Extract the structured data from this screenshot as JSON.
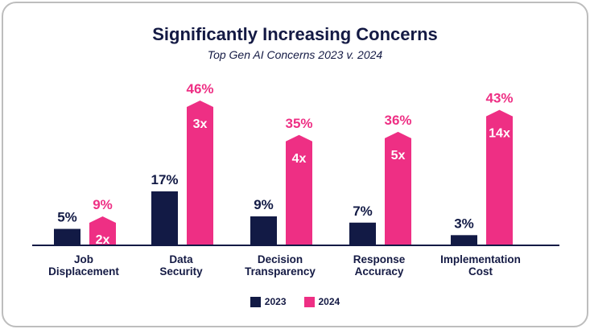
{
  "colors": {
    "y2023": "#121a45",
    "y2024": "#ee2f84",
    "axis": "#121a45",
    "text": "#141a44"
  },
  "chart_data": {
    "type": "bar",
    "title": "Significantly Increasing Concerns",
    "subtitle": "Top Gen AI Concerns 2023 v. 2024",
    "categories": [
      [
        "Job",
        "Displacement"
      ],
      [
        "Data",
        "Security"
      ],
      [
        "Decision",
        "Transparency"
      ],
      [
        "Response",
        "Accuracy"
      ],
      [
        "Implementation",
        "Cost"
      ]
    ],
    "series": [
      {
        "name": "2023",
        "values": [
          5,
          17,
          9,
          7,
          3
        ],
        "labels": [
          "5%",
          "17%",
          "9%",
          "7%",
          "3%"
        ]
      },
      {
        "name": "2024",
        "values": [
          9,
          46,
          35,
          36,
          43
        ],
        "labels": [
          "9%",
          "46%",
          "35%",
          "36%",
          "43%"
        ]
      }
    ],
    "multipliers": [
      "2x",
      "3x",
      "4x",
      "5x",
      "14x"
    ],
    "ylim": [
      0,
      46
    ],
    "legend": [
      "2023",
      "2024"
    ]
  }
}
